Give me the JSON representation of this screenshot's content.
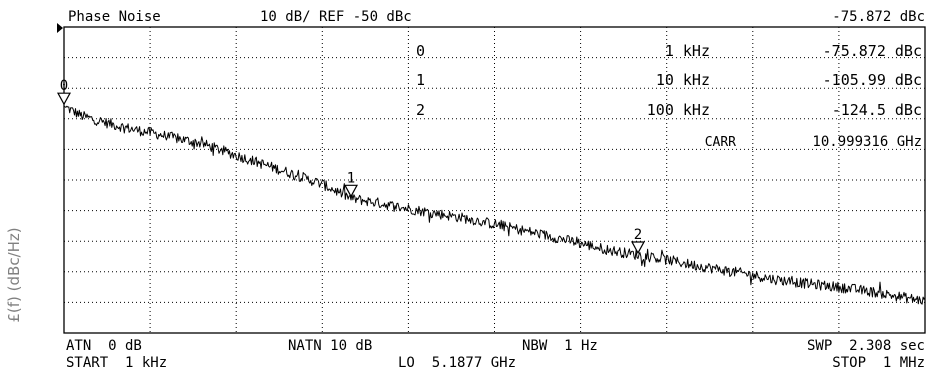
{
  "chart_data": {
    "type": "line",
    "title": "Phase Noise",
    "scale_label": "10 dB/ REF -50 dBc",
    "readout": "-75.872 dBc",
    "ylabel": "£(f) (dBc/Hz)",
    "ref_level_dbc": -50,
    "db_per_div": 10,
    "ylim": [
      -150,
      -50
    ],
    "xlim_hz": [
      1000,
      1000000
    ],
    "x_scale": "log",
    "grid": true,
    "series": [
      {
        "x": [
          1000,
          1150,
          1300,
          1500,
          1750,
          2000,
          2500,
          3000,
          4000,
          5000,
          6500,
          8000,
          10000,
          12500,
          15000,
          20000,
          25000,
          30000,
          40000,
          50000,
          65000,
          80000,
          100000,
          125000,
          150000,
          200000,
          250000,
          300000,
          400000,
          500000,
          650000,
          800000,
          1000000
        ],
        "values": [
          -75.9,
          -79.0,
          -80.5,
          -82.0,
          -83.5,
          -84.5,
          -86.5,
          -88.0,
          -92.0,
          -95.0,
          -98.5,
          -101.5,
          -106.0,
          -107.5,
          -109.0,
          -111.0,
          -112.5,
          -114.0,
          -116.5,
          -118.5,
          -121.0,
          -123.0,
          -124.5,
          -126.0,
          -127.5,
          -129.5,
          -131.0,
          -132.5,
          -134.0,
          -135.0,
          -136.5,
          -138.0,
          -139.5
        ]
      }
    ],
    "markers": [
      {
        "id": "0",
        "label": "0",
        "freq": "1 kHz",
        "level": "-75.872 dBc",
        "x": 1000,
        "y": -75.872
      },
      {
        "id": "1",
        "label": "1",
        "freq": "10 kHz",
        "level": "-105.99 dBc",
        "x": 10000,
        "y": -105.99
      },
      {
        "id": "2",
        "label": "2",
        "freq": "100 kHz",
        "level": "-124.5 dBc",
        "x": 100000,
        "y": -124.5
      }
    ],
    "carrier": {
      "label": "CARR",
      "value": "10.999316 GHz"
    },
    "footer": {
      "atn": "ATN  0 dB",
      "natn": "NATN 10 dB",
      "nbw": "NBW  1 Hz",
      "swp": "SWP  2.308 sec",
      "start": "START  1 kHz",
      "lo": "LO  5.1877 GHz",
      "stop": "STOP  1 MHz"
    }
  }
}
